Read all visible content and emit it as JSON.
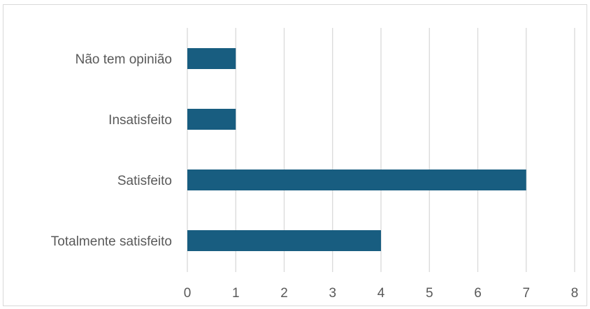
{
  "chart_data": {
    "type": "bar",
    "orientation": "horizontal",
    "categories": [
      "Não tem opinião",
      "Insatisfeito",
      "Satisfeito",
      "Totalmente satisfeito"
    ],
    "values": [
      1,
      1,
      7,
      4
    ],
    "xlim": [
      0,
      8
    ],
    "x_ticks": [
      "0",
      "1",
      "2",
      "3",
      "4",
      "5",
      "6",
      "7",
      "8"
    ],
    "grid": "vertical",
    "bar_color": "#185d80",
    "gridline_color": "#d9d9d9",
    "text_color": "#595959"
  }
}
